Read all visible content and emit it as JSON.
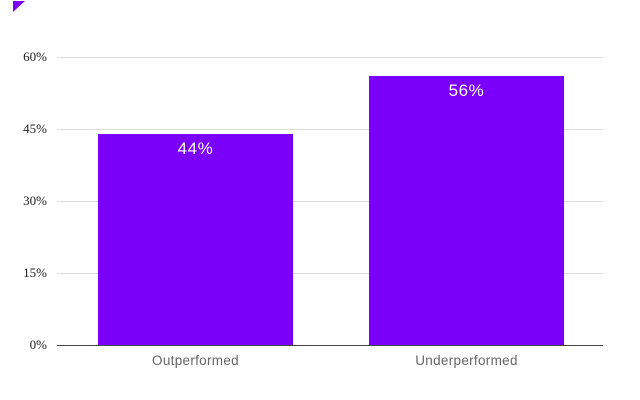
{
  "page": {
    "background": "#ffffff",
    "title": ""
  },
  "decorations": {
    "corner_mark": {
      "icon": "purple-triangle",
      "color": "#7B00FA"
    }
  },
  "chart_data": {
    "type": "bar",
    "title": "",
    "xlabel": "",
    "ylabel": "",
    "categories": [
      "Outperformed",
      "Underperformed"
    ],
    "values": [
      44,
      56
    ],
    "value_labels": [
      "44%",
      "56%"
    ],
    "y_ticks": [
      0,
      15,
      30,
      45,
      60
    ],
    "y_tick_labels": [
      "0%",
      "15%",
      "30%",
      "45%",
      "60%"
    ],
    "ylim": [
      0,
      60
    ],
    "grid": "horizontal",
    "legend": "none",
    "colors": {
      "bar": "#7B00FA",
      "gridline": "#dcdcdc",
      "zero_axis_line": "#444444",
      "tick_text": "#1f1f1f",
      "category_text": "#666666",
      "value_text": "#ffffff",
      "background": "#ffffff"
    }
  }
}
